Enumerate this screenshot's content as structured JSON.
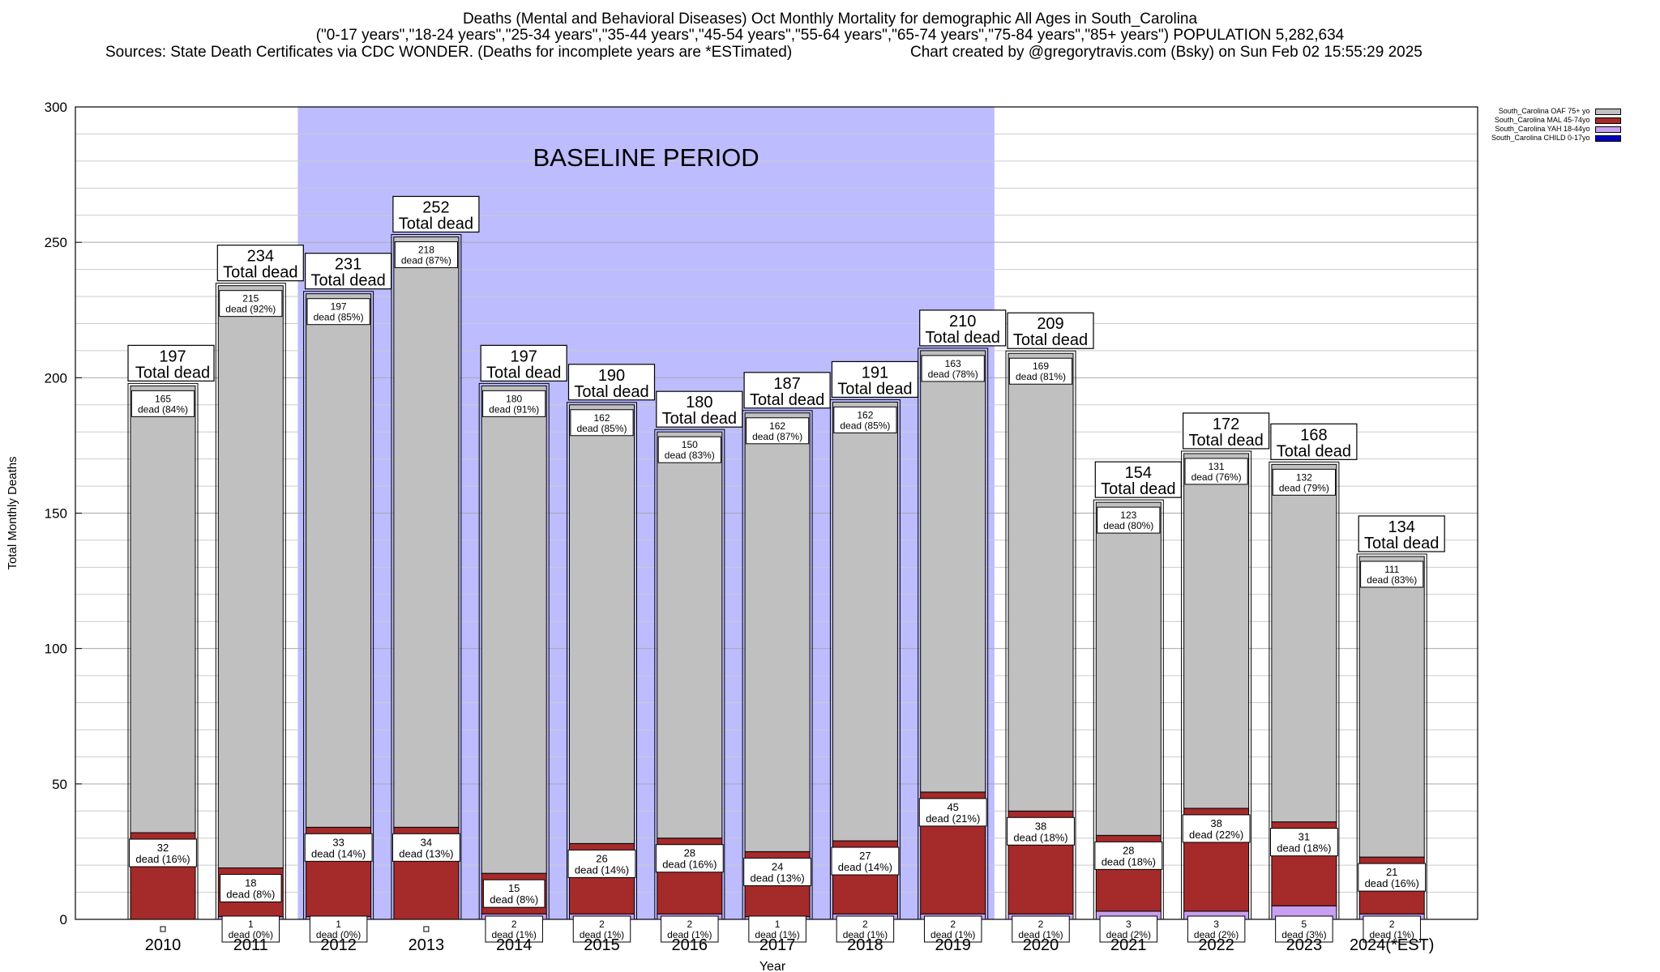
{
  "header": {
    "title_line1": "Deaths (Mental and Behavioral Diseases) Oct Monthly Mortality for demographic All Ages in South_Carolina",
    "title_line2": "(\"0-17 years\",\"18-24 years\",\"25-34 years\",\"35-44 years\",\"45-54 years\",\"55-64 years\",\"65-74 years\",\"75-84 years\",\"85+ years\") POPULATION 5,282,634",
    "sources": "Sources: State Death Certificates via CDC WONDER. (Deaths for incomplete years are *ESTimated)",
    "credit": "Chart created by @gregorytravis.com (Bsky) on Sun Feb 02 15:55:29 2025"
  },
  "chart_data": {
    "type": "bar",
    "stacked": true,
    "title": "Deaths (Mental and Behavioral Diseases) Oct Monthly Mortality for demographic All Ages in South_Carolina",
    "xlabel": "Year",
    "ylabel": "Total Monthly Deaths",
    "ylim": [
      0,
      300
    ],
    "yticks": [
      0,
      50,
      100,
      150,
      200,
      250,
      300
    ],
    "grid": true,
    "legend_position": "top-right",
    "baseline_label": "BASELINE PERIOD",
    "baseline_range": [
      "2012",
      "2019"
    ],
    "total_suffix": "Total dead",
    "categories": [
      "2010",
      "2011",
      "2012",
      "2013",
      "2014",
      "2015",
      "2016",
      "2017",
      "2018",
      "2019",
      "2020",
      "2021",
      "2022",
      "2023",
      "2024(*EST)"
    ],
    "totals": [
      197,
      234,
      231,
      252,
      197,
      190,
      180,
      187,
      191,
      210,
      209,
      154,
      172,
      168,
      134
    ],
    "series": [
      {
        "name": "South_Carolina CHILD 0-17yo",
        "color": "#0000c0",
        "values": [
          0,
          0,
          0,
          0,
          0,
          0,
          0,
          0,
          0,
          0,
          0,
          0,
          0,
          0,
          0
        ],
        "labels": []
      },
      {
        "name": "South_Carolina YAH 18-44yo",
        "color": "#c8a0f0",
        "values": [
          0,
          1,
          1,
          0,
          2,
          2,
          2,
          1,
          2,
          2,
          2,
          3,
          3,
          5,
          2
        ],
        "labels": [
          "",
          "dead (0%)",
          "dead (0%)",
          "",
          "dead (1%)",
          "dead (1%)",
          "dead (1%)",
          "dead (1%)",
          "dead (1%)",
          "dead (1%)",
          "dead (1%)",
          "dead (2%)",
          "dead (2%)",
          "dead (3%)",
          "dead (1%)"
        ]
      },
      {
        "name": "South_Carolina MAL 45-74yo",
        "color": "#a52a2a",
        "values": [
          32,
          18,
          33,
          34,
          15,
          26,
          28,
          24,
          27,
          45,
          38,
          28,
          38,
          31,
          21
        ],
        "labels": [
          "dead (16%)",
          "dead (8%)",
          "dead (14%)",
          "dead (13%)",
          "dead (8%)",
          "dead (14%)",
          "dead (16%)",
          "dead (13%)",
          "dead (14%)",
          "dead (21%)",
          "dead (18%)",
          "dead (18%)",
          "dead (22%)",
          "dead (18%)",
          "dead (16%)"
        ]
      },
      {
        "name": "South_Carolina OAF 75+ yo",
        "color": "#c0c0c0",
        "values": [
          165,
          215,
          197,
          218,
          180,
          162,
          150,
          162,
          162,
          163,
          169,
          123,
          131,
          132,
          111
        ],
        "labels": [
          "dead (84%)",
          "dead (92%)",
          "dead (85%)",
          "dead (87%)",
          "dead (91%)",
          "dead (85%)",
          "dead (83%)",
          "dead (87%)",
          "dead (85%)",
          "dead (78%)",
          "dead (81%)",
          "dead (80%)",
          "dead (76%)",
          "dead (79%)",
          "dead (83%)"
        ]
      }
    ],
    "legend": [
      {
        "name": "South_Carolina OAF 75+ yo",
        "color": "#c0c0c0"
      },
      {
        "name": "South_Carolina MAL 45-74yo",
        "color": "#a52a2a"
      },
      {
        "name": "South_Carolina YAH 18-44yo",
        "color": "#c8a0f0"
      },
      {
        "name": "South_Carolina CHILD 0-17yo",
        "color": "#0000c0"
      }
    ]
  }
}
